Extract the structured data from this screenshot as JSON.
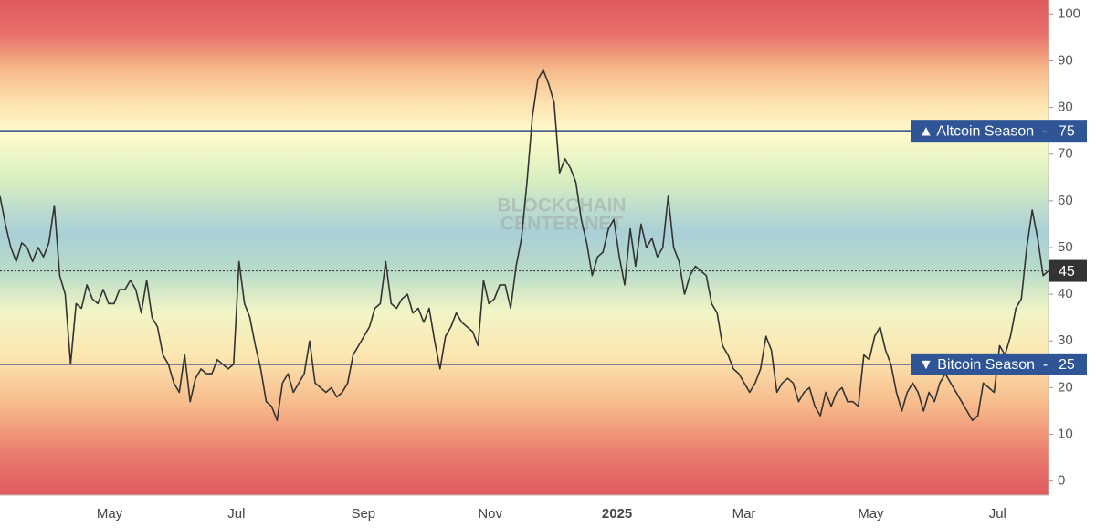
{
  "chart_data": {
    "type": "line",
    "color": "#333333",
    "values": [
      61,
      55,
      50,
      47,
      51,
      50,
      47,
      50,
      48,
      51,
      59,
      44,
      40,
      25,
      38,
      37,
      42,
      39,
      38,
      41,
      38,
      38,
      41,
      41,
      43,
      41,
      36,
      43,
      35,
      33,
      27,
      25,
      21,
      19,
      27,
      17,
      22,
      24,
      23,
      23,
      26,
      25,
      24,
      25,
      47,
      38,
      35,
      29,
      24,
      17,
      16,
      13,
      21,
      23,
      19,
      21,
      23,
      30,
      21,
      20,
      19,
      20,
      18,
      19,
      21,
      27,
      29,
      31,
      33,
      37,
      38,
      47,
      38,
      37,
      39,
      40,
      36,
      37,
      34,
      37,
      30,
      24,
      31,
      33,
      36,
      34,
      33,
      32,
      29,
      43,
      38,
      39,
      42,
      42,
      37,
      46,
      52,
      64,
      78,
      86,
      88,
      85,
      81,
      66,
      69,
      67,
      64,
      56,
      51,
      44,
      48,
      49,
      54,
      56,
      48,
      42,
      54,
      46,
      55,
      50,
      52,
      48,
      50,
      61,
      50,
      47,
      40,
      44,
      46,
      45,
      44,
      38,
      36,
      29,
      27,
      24,
      23,
      21,
      19,
      21,
      24,
      31,
      28,
      19,
      21,
      22,
      21,
      17,
      19,
      20,
      16,
      14,
      19,
      16,
      19,
      20,
      17,
      17,
      16,
      27,
      26,
      31,
      33,
      28,
      25,
      19,
      15,
      19,
      21,
      19,
      15,
      19,
      17,
      21,
      23,
      21,
      19,
      17,
      15,
      13,
      14,
      21,
      20,
      19,
      29,
      27,
      31,
      37,
      39,
      50,
      58,
      52,
      44,
      45
    ],
    "ylim": [
      -3,
      103
    ],
    "yticks": [
      0,
      10,
      20,
      30,
      40,
      50,
      60,
      70,
      80,
      90,
      100
    ],
    "x_labels": [
      "May",
      "Jul",
      "Sep",
      "Nov",
      "2025",
      "Mar",
      "May",
      "Jul"
    ],
    "reference_lines": [
      {
        "label": "▲ Altcoin Season  -",
        "value": 75
      },
      {
        "label": "▼ Bitcoin Season  -",
        "value": 25
      }
    ],
    "current_value": 45,
    "watermark": [
      "BLOCKCHAIN",
      "CENTER.NET"
    ]
  }
}
